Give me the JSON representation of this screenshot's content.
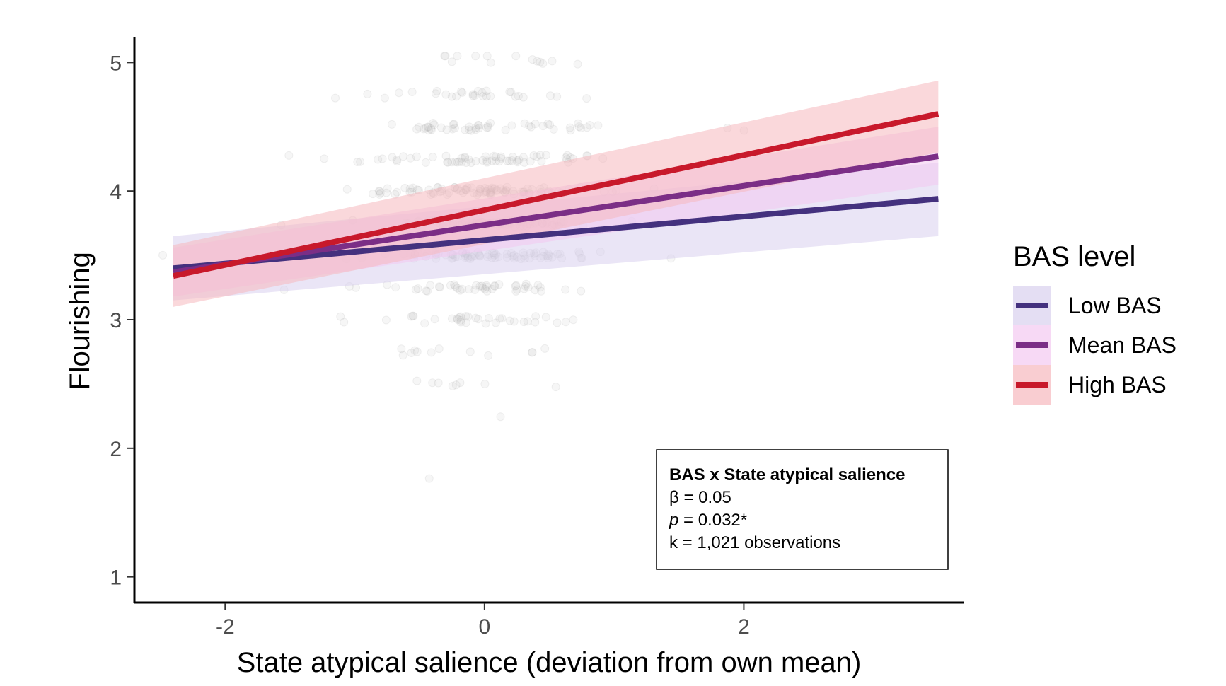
{
  "chart_data": {
    "type": "line",
    "title": "",
    "xlabel": "State atypical salience (deviation from own mean)",
    "ylabel": "Flourishing",
    "xlim": [
      -2.7,
      3.7
    ],
    "ylim": [
      0.8,
      5.2
    ],
    "xticks": [
      -2,
      0,
      2
    ],
    "yticks": [
      1,
      2,
      3,
      4,
      5
    ],
    "xtick_labels": [
      "-2",
      "0",
      "2"
    ],
    "ytick_labels": [
      "1",
      "2",
      "3",
      "4",
      "5"
    ],
    "grid": false,
    "legend": {
      "title": "BAS level",
      "position": "right"
    },
    "x": [
      -2.4,
      3.5
    ],
    "series": [
      {
        "name": "Low BAS",
        "values": [
          3.4,
          3.94
        ],
        "ci_lower": [
          3.15,
          3.65
        ],
        "ci_upper": [
          3.65,
          4.22
        ],
        "color": "#44317e",
        "fill": "#d9d0ee"
      },
      {
        "name": "Mean BAS",
        "values": [
          3.37,
          4.27
        ],
        "ci_lower": [
          3.18,
          4.05
        ],
        "ci_upper": [
          3.56,
          4.5
        ],
        "color": "#7b2e86",
        "fill": "#f3c9f1"
      },
      {
        "name": "High BAS",
        "values": [
          3.34,
          4.6
        ],
        "ci_lower": [
          3.1,
          4.3
        ],
        "ci_upper": [
          3.58,
          4.86
        ],
        "color": "#c8192b",
        "fill": "#f6b8bd"
      }
    ],
    "annotation": {
      "title": "BAS x State atypical salience",
      "beta_label": "β = 0.05",
      "p_symbol": "p",
      "p_value": " = 0.032*",
      "k_label": "k = 1,021 observations"
    }
  }
}
